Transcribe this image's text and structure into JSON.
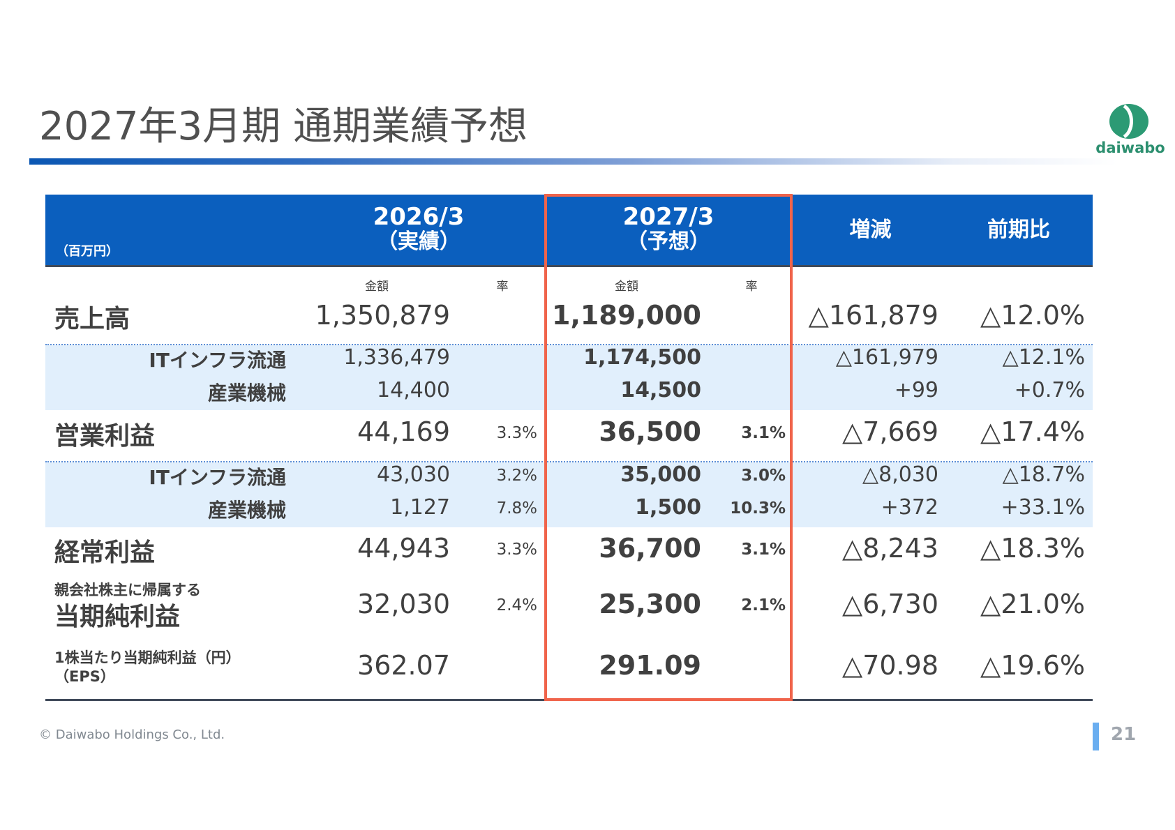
{
  "title": "2027年3月期 通期業績予想",
  "logo": {
    "text": "daiwabo",
    "color": "#2c8f6f"
  },
  "colors": {
    "header_bg": "#0b5fbe",
    "band_bg": "#e1effc",
    "highlight_border": "#f0644b",
    "title_bar": "#0b57b3"
  },
  "table": {
    "unit": "（百万円）",
    "col_prev": {
      "period": "2026/3",
      "sub": "（実績）"
    },
    "col_fcst": {
      "period": "2027/3",
      "sub": "（予想）"
    },
    "col_diff": "増減",
    "col_pct": "前期比",
    "sub_amount": "金額",
    "sub_rate": "率",
    "rows": [
      {
        "label": "売上高",
        "prev_amt": "1,350,879",
        "prev_rate": "",
        "fcst_amt": "1,189,000",
        "fcst_rate": "",
        "diff": "△161,879",
        "pct": "△12.0%"
      },
      {
        "label": "ITインフラ流通",
        "prev_amt": "1,336,479",
        "prev_rate": "",
        "fcst_amt": "1,174,500",
        "fcst_rate": "",
        "diff": "△161,979",
        "pct": "△12.1%"
      },
      {
        "label": "産業機械",
        "prev_amt": "14,400",
        "prev_rate": "",
        "fcst_amt": "14,500",
        "fcst_rate": "",
        "diff": "+99",
        "pct": "+0.7%"
      },
      {
        "label": "営業利益",
        "prev_amt": "44,169",
        "prev_rate": "3.3%",
        "fcst_amt": "36,500",
        "fcst_rate": "3.1%",
        "diff": "△7,669",
        "pct": "△17.4%"
      },
      {
        "label": "ITインフラ流通",
        "prev_amt": "43,030",
        "prev_rate": "3.2%",
        "fcst_amt": "35,000",
        "fcst_rate": "3.0%",
        "diff": "△8,030",
        "pct": "△18.7%"
      },
      {
        "label": "産業機械",
        "prev_amt": "1,127",
        "prev_rate": "7.8%",
        "fcst_amt": "1,500",
        "fcst_rate": "10.3%",
        "diff": "+372",
        "pct": "+33.1%"
      },
      {
        "label": "経常利益",
        "prev_amt": "44,943",
        "prev_rate": "3.3%",
        "fcst_amt": "36,700",
        "fcst_rate": "3.1%",
        "diff": "△8,243",
        "pct": "△18.3%"
      },
      {
        "label_small": "親会社株主に帰属する",
        "label": "当期純利益",
        "prev_amt": "32,030",
        "prev_rate": "2.4%",
        "fcst_amt": "25,300",
        "fcst_rate": "2.1%",
        "diff": "△6,730",
        "pct": "△21.0%"
      },
      {
        "label_line1": "1株当たり当期純利益（円）",
        "label_line2": "（EPS）",
        "prev_amt": "362.07",
        "prev_rate": "",
        "fcst_amt": "291.09",
        "fcst_rate": "",
        "diff": "△70.98",
        "pct": "△19.6%"
      }
    ]
  },
  "footer": {
    "copyright": "© Daiwabo Holdings Co., Ltd.",
    "page": "21"
  }
}
